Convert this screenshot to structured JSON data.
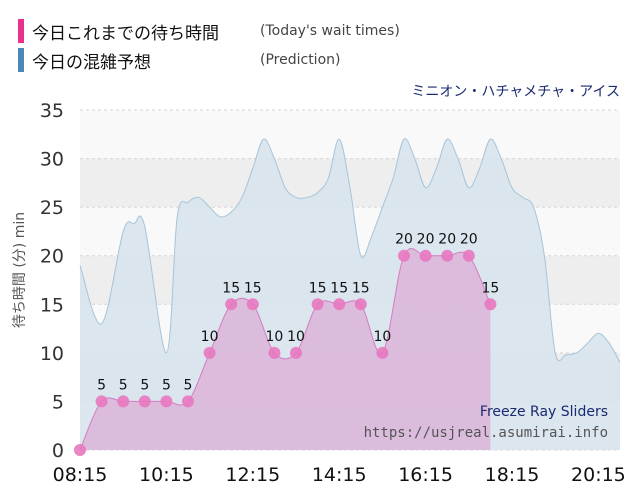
{
  "legend": [
    {
      "label": "今日これまでの待ち時間",
      "sub": "(Today's wait times)",
      "color": "#e8308c"
    },
    {
      "label": "今日の混雑予想",
      "sub": "(Prediction)",
      "color": "#4f86b8"
    }
  ],
  "colors": {
    "actual_fill": "#dcb4d8",
    "actual_line": "#d47cc0",
    "actual_point": "#e878c0",
    "prediction_fill": "#d7e3ec",
    "prediction_line": "#a8c4d8",
    "band_light": "#eeeeee",
    "band_white": "#f9f9f9",
    "grid": "#d6d6d6",
    "axis_text": "#333333",
    "attraction_en": "#1a2a70",
    "site": "#555555"
  },
  "chart_data": {
    "type": "area",
    "title": "ミニオン・ハチャメチャ・アイス",
    "subtitle": "Freeze Ray Sliders",
    "credit": "https://usjreal.asumirai.info",
    "ylabel": "待ち時間 (分) min",
    "ylim": [
      0,
      35
    ],
    "xlim": [
      "08:15",
      "20:45"
    ],
    "y_ticks": [
      0,
      5,
      10,
      15,
      20,
      25,
      30,
      35
    ],
    "x_ticks": [
      "08:15",
      "10:15",
      "12:15",
      "14:15",
      "16:15",
      "18:15",
      "20:15"
    ],
    "series": [
      {
        "name": "今日の混雑予想",
        "x": [
          "08:15",
          "08:45",
          "09:15",
          "09:30",
          "09:45",
          "10:15",
          "10:30",
          "10:45",
          "11:00",
          "11:15",
          "11:30",
          "11:45",
          "12:00",
          "12:15",
          "12:30",
          "12:45",
          "13:00",
          "13:15",
          "13:30",
          "13:45",
          "14:00",
          "14:15",
          "14:30",
          "14:45",
          "15:00",
          "15:15",
          "15:30",
          "15:45",
          "16:00",
          "16:15",
          "16:30",
          "16:45",
          "17:00",
          "17:15",
          "17:30",
          "17:45",
          "18:00",
          "18:15",
          "18:30",
          "18:45",
          "19:00",
          "19:15",
          "19:30",
          "19:45",
          "20:00",
          "20:15",
          "20:30",
          "20:45"
        ],
        "values": [
          19,
          13,
          22.5,
          23.3,
          23,
          10,
          24,
          25.5,
          26,
          25,
          24,
          24.5,
          26,
          29,
          32,
          30,
          27,
          26,
          26,
          26.5,
          28,
          32,
          27,
          20,
          22,
          25,
          28,
          32,
          30,
          27,
          29,
          32,
          30,
          27,
          29,
          32,
          30,
          27,
          26,
          25,
          20,
          10,
          9.8,
          10,
          11,
          12,
          11,
          9
        ]
      },
      {
        "name": "今日これまでの待ち時間",
        "x": [
          "08:15",
          "08:45",
          "09:15",
          "09:45",
          "10:15",
          "10:45",
          "11:15",
          "11:45",
          "12:15",
          "12:45",
          "13:15",
          "13:45",
          "14:15",
          "14:45",
          "15:15",
          "15:45",
          "16:15",
          "16:45",
          "17:15",
          "17:45"
        ],
        "values": [
          0,
          5,
          5,
          5,
          5,
          5,
          10,
          15,
          15,
          10,
          10,
          15,
          15,
          15,
          10,
          20,
          20,
          20,
          20,
          15
        ]
      }
    ]
  }
}
